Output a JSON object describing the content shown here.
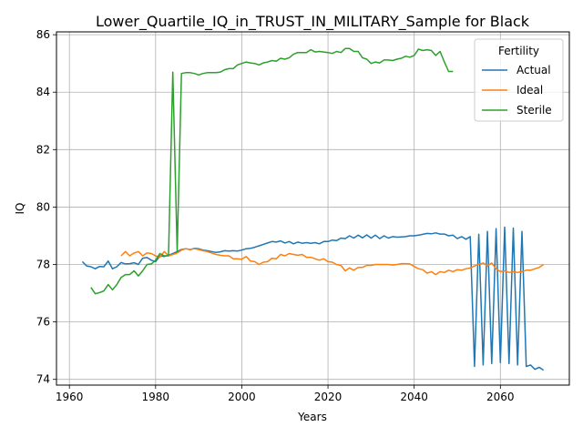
{
  "chart_data": {
    "type": "line",
    "title": "Lower_Quartile_IQ_in_TRUST_IN_MILITARY_Sample for Black",
    "xlabel": "Years",
    "ylabel": "IQ",
    "xlim": [
      1957,
      2076
    ],
    "ylim": [
      73.8,
      86.1
    ],
    "xticks": [
      1960,
      1980,
      2000,
      2020,
      2040,
      2060
    ],
    "yticks": [
      74,
      76,
      78,
      80,
      82,
      84,
      86
    ],
    "grid": true,
    "legend": {
      "title": "Fertility",
      "placement": "top-right"
    },
    "series": [
      {
        "name": "Actual",
        "color": "#1f77b4",
        "x": [
          1963,
          1964,
          1965,
          1966,
          1967,
          1968,
          1969,
          1970,
          1971,
          1972,
          1973,
          1974,
          1975,
          1976,
          1977,
          1978,
          1979,
          1980,
          1981,
          1982,
          1983,
          1984,
          1985,
          1986,
          1987,
          1988,
          1989,
          1990,
          1991,
          1992,
          1993,
          1994,
          1995,
          1996,
          1997,
          1998,
          1999,
          2000,
          2001,
          2002,
          2003,
          2004,
          2005,
          2006,
          2007,
          2008,
          2009,
          2010,
          2011,
          2012,
          2013,
          2014,
          2015,
          2016,
          2017,
          2018,
          2019,
          2020,
          2021,
          2022,
          2023,
          2024,
          2025,
          2026,
          2027,
          2028,
          2029,
          2030,
          2031,
          2032,
          2033,
          2034,
          2035,
          2036,
          2037,
          2038,
          2039,
          2040,
          2041,
          2042,
          2043,
          2044,
          2045,
          2046,
          2047,
          2048,
          2049,
          2050,
          2051,
          2052,
          2053,
          2054,
          2055,
          2056,
          2057,
          2058,
          2059,
          2060,
          2061,
          2062,
          2063,
          2064,
          2065,
          2066,
          2067,
          2068,
          2069,
          2070
        ],
        "y": [
          78.1,
          77.95,
          77.92,
          77.85,
          77.93,
          77.92,
          78.12,
          77.85,
          77.92,
          78.07,
          78.02,
          78.03,
          78.06,
          78.0,
          78.22,
          78.24,
          78.15,
          78.1,
          78.3,
          78.28,
          78.32,
          78.38,
          78.45,
          78.52,
          78.55,
          78.52,
          78.56,
          78.55,
          78.5,
          78.48,
          78.45,
          78.42,
          78.44,
          78.48,
          78.47,
          78.48,
          78.47,
          78.5,
          78.55,
          78.56,
          78.6,
          78.65,
          78.7,
          78.75,
          78.8,
          78.78,
          78.82,
          78.75,
          78.8,
          78.72,
          78.78,
          78.74,
          78.76,
          78.74,
          78.76,
          78.72,
          78.8,
          78.8,
          78.85,
          78.83,
          78.92,
          78.9,
          79.0,
          78.92,
          79.02,
          78.93,
          79.03,
          78.92,
          79.02,
          78.9,
          79.0,
          78.92,
          78.97,
          78.95,
          78.96,
          78.97,
          79.0,
          79.0,
          79.02,
          79.05,
          79.08,
          79.07,
          79.1,
          79.06,
          79.06,
          79.0,
          79.02,
          78.9,
          78.97,
          78.88,
          78.97,
          74.45,
          79.05,
          74.5,
          79.15,
          74.55,
          79.25,
          74.58,
          79.3,
          74.55,
          79.27,
          74.5,
          79.15,
          74.45,
          74.5,
          74.35,
          74.42,
          74.32
        ]
      },
      {
        "name": "Ideal",
        "color": "#ff7f0e",
        "x": [
          1972,
          1973,
          1974,
          1975,
          1976,
          1977,
          1978,
          1979,
          1980,
          1981,
          1982,
          1983,
          1984,
          1985,
          1986,
          1987,
          1988,
          1989,
          1990,
          1991,
          1992,
          1993,
          1994,
          1995,
          1996,
          1997,
          1998,
          1999,
          2000,
          2001,
          2002,
          2003,
          2004,
          2005,
          2006,
          2007,
          2008,
          2009,
          2010,
          2011,
          2012,
          2013,
          2014,
          2015,
          2016,
          2017,
          2018,
          2019,
          2020,
          2021,
          2022,
          2023,
          2024,
          2025,
          2026,
          2027,
          2028,
          2029,
          2030,
          2031,
          2032,
          2033,
          2034,
          2035,
          2036,
          2037,
          2038,
          2039,
          2040,
          2041,
          2042,
          2043,
          2044,
          2045,
          2046,
          2047,
          2048,
          2049,
          2050,
          2051,
          2052,
          2053,
          2054,
          2055,
          2056,
          2057,
          2058,
          2059,
          2060,
          2061,
          2062,
          2063,
          2064,
          2065,
          2066,
          2067,
          2068,
          2069,
          2070
        ],
        "y": [
          78.3,
          78.45,
          78.3,
          78.4,
          78.45,
          78.3,
          78.4,
          78.38,
          78.3,
          78.25,
          78.45,
          78.3,
          78.35,
          78.4,
          78.5,
          78.55,
          78.52,
          78.55,
          78.52,
          78.48,
          78.45,
          78.4,
          78.35,
          78.32,
          78.3,
          78.3,
          78.2,
          78.2,
          78.18,
          78.28,
          78.12,
          78.1,
          78.0,
          78.08,
          78.1,
          78.22,
          78.2,
          78.35,
          78.3,
          78.38,
          78.35,
          78.32,
          78.35,
          78.25,
          78.25,
          78.2,
          78.15,
          78.2,
          78.1,
          78.08,
          78.0,
          77.97,
          77.78,
          77.88,
          77.8,
          77.9,
          77.9,
          77.97,
          77.97,
          78.0,
          78.0,
          78.0,
          78.0,
          77.98,
          78.0,
          78.03,
          78.03,
          78.02,
          77.93,
          77.85,
          77.82,
          77.7,
          77.75,
          77.65,
          77.75,
          77.72,
          77.8,
          77.75,
          77.82,
          77.8,
          77.85,
          77.88,
          77.95,
          78.0,
          78.05,
          77.95,
          78.05,
          77.85,
          77.75,
          77.78,
          77.72,
          77.75,
          77.72,
          77.75,
          77.8,
          77.8,
          77.85,
          77.9,
          78.0
        ]
      },
      {
        "name": "Sterile",
        "color": "#2ca02c",
        "x": [
          1965,
          1966,
          1967,
          1968,
          1969,
          1970,
          1971,
          1972,
          1973,
          1974,
          1975,
          1976,
          1977,
          1978,
          1979,
          1980,
          1981,
          1982,
          1983,
          1984,
          1985,
          1986,
          1987,
          1988,
          1989,
          1990,
          1991,
          1992,
          1993,
          1994,
          1995,
          1996,
          1997,
          1998,
          1999,
          2000,
          2001,
          2002,
          2003,
          2004,
          2005,
          2006,
          2007,
          2008,
          2009,
          2010,
          2011,
          2012,
          2013,
          2014,
          2015,
          2016,
          2017,
          2018,
          2019,
          2020,
          2021,
          2022,
          2023,
          2024,
          2025,
          2026,
          2027,
          2028,
          2029,
          2030,
          2031,
          2032,
          2033,
          2034,
          2035,
          2036,
          2037,
          2038,
          2039,
          2040,
          2041,
          2042,
          2043,
          2044,
          2045,
          2046,
          2047,
          2048,
          2049
        ],
        "y": [
          77.2,
          76.98,
          77.02,
          77.08,
          77.3,
          77.12,
          77.3,
          77.55,
          77.65,
          77.65,
          77.78,
          77.6,
          77.78,
          78.0,
          78.02,
          78.15,
          78.38,
          78.3,
          78.3,
          84.7,
          78.45,
          84.65,
          84.68,
          84.68,
          84.65,
          84.6,
          84.65,
          84.68,
          84.68,
          84.68,
          84.7,
          84.78,
          84.82,
          84.82,
          84.95,
          85.0,
          85.05,
          85.02,
          85.0,
          84.95,
          85.02,
          85.05,
          85.1,
          85.08,
          85.18,
          85.15,
          85.2,
          85.32,
          85.38,
          85.38,
          85.38,
          85.48,
          85.4,
          85.42,
          85.4,
          85.38,
          85.35,
          85.42,
          85.38,
          85.52,
          85.52,
          85.42,
          85.42,
          85.2,
          85.15,
          85.0,
          85.05,
          85.02,
          85.12,
          85.12,
          85.1,
          85.15,
          85.18,
          85.25,
          85.22,
          85.28,
          85.5,
          85.45,
          85.48,
          85.45,
          85.28,
          85.42,
          85.05,
          84.72,
          84.72
        ]
      }
    ]
  }
}
